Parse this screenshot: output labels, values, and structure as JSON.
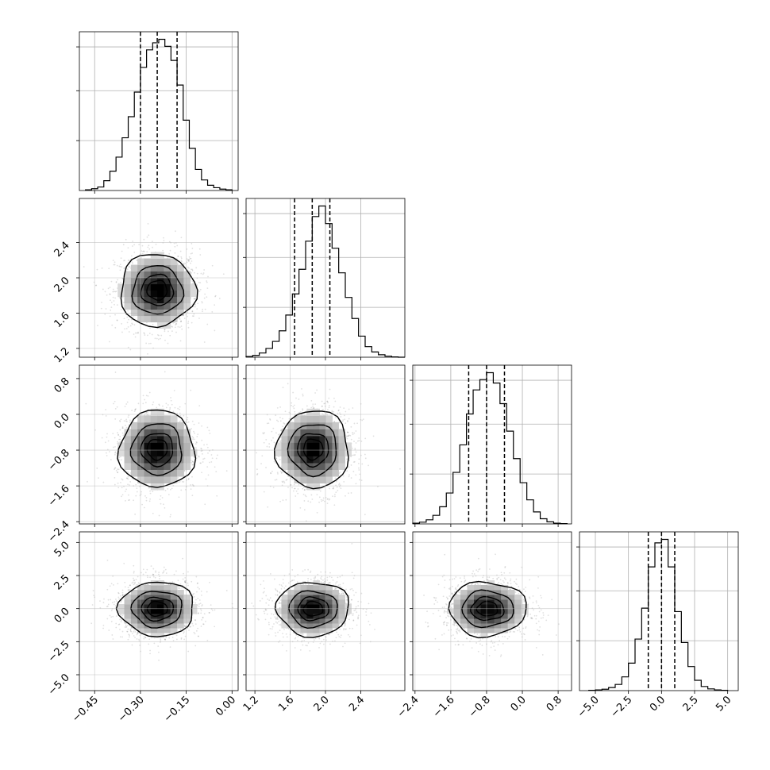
{
  "chart_data": {
    "type": "corner",
    "parameters": [
      {
        "id": "p0",
        "range": [
          -0.5,
          0.02
        ],
        "ticks": [
          "-0.45",
          "-0.30",
          "-0.15",
          "0.00"
        ],
        "tick_values": [
          -0.45,
          -0.3,
          -0.15,
          0.0
        ],
        "quantiles": [
          -0.3,
          -0.245,
          -0.18
        ],
        "center": -0.245,
        "sigma": 0.06,
        "hist_edges": [
          -0.48,
          -0.46,
          -0.44,
          -0.42,
          -0.4,
          -0.38,
          -0.36,
          -0.34,
          -0.32,
          -0.3,
          -0.28,
          -0.26,
          -0.24,
          -0.22,
          -0.2,
          -0.18,
          -0.16,
          -0.14,
          -0.12,
          -0.1,
          -0.08,
          -0.06,
          -0.04,
          -0.02,
          0.0
        ],
        "hist_counts": [
          2,
          5,
          10,
          28,
          55,
          95,
          150,
          210,
          280,
          350,
          400,
          420,
          430,
          410,
          370,
          300,
          200,
          120,
          60,
          30,
          15,
          8,
          4,
          2
        ]
      },
      {
        "id": "p1",
        "range": [
          1.1,
          2.9
        ],
        "ticks": [
          "1.2",
          "1.6",
          "2.0",
          "2.4"
        ],
        "tick_values": [
          1.2,
          1.6,
          2.0,
          2.4
        ],
        "quantiles": [
          1.65,
          1.85,
          2.05
        ],
        "center": 1.86,
        "sigma": 0.2,
        "hist_edges": [
          1.1,
          1.175,
          1.25,
          1.325,
          1.4,
          1.475,
          1.55,
          1.625,
          1.7,
          1.775,
          1.85,
          1.925,
          2.0,
          2.075,
          2.15,
          2.225,
          2.3,
          2.375,
          2.45,
          2.525,
          2.6,
          2.675,
          2.75,
          2.825,
          2.9
        ],
        "hist_counts": [
          2,
          5,
          12,
          25,
          45,
          75,
          120,
          180,
          250,
          330,
          400,
          430,
          380,
          310,
          240,
          170,
          110,
          60,
          30,
          15,
          7,
          3,
          1,
          0
        ]
      },
      {
        "id": "p2",
        "range": [
          -2.45,
          1.1
        ],
        "ticks": [
          "-2.4",
          "-1.6",
          "-0.8",
          "0.0",
          "0.8"
        ],
        "tick_values": [
          -2.4,
          -1.6,
          -0.8,
          0.0,
          0.8
        ],
        "quantiles": [
          -1.2,
          -0.8,
          -0.4
        ],
        "center": -0.78,
        "sigma": 0.42,
        "hist_edges": [
          -2.45,
          -2.3,
          -2.15,
          -2.0,
          -1.85,
          -1.7,
          -1.55,
          -1.4,
          -1.25,
          -1.1,
          -0.95,
          -0.8,
          -0.65,
          -0.5,
          -0.35,
          -0.2,
          -0.05,
          0.1,
          0.25,
          0.4,
          0.55,
          0.7,
          0.85,
          1.0
        ],
        "hist_counts": [
          2,
          5,
          12,
          25,
          50,
          90,
          150,
          230,
          320,
          390,
          420,
          440,
          410,
          350,
          270,
          190,
          120,
          70,
          35,
          15,
          6,
          2,
          1
        ]
      },
      {
        "id": "p3",
        "range": [
          -6.2,
          5.8
        ],
        "ticks": [
          "-5.0",
          "-2.5",
          "0.0",
          "2.5",
          "5.0"
        ],
        "tick_values": [
          -5.0,
          -2.5,
          0.0,
          2.5,
          5.0
        ],
        "quantiles": [
          -1.0,
          0.0,
          1.0
        ],
        "center": -0.02,
        "sigma": 1.0,
        "hist_edges": [
          -5.5,
          -5.0,
          -4.5,
          -4.0,
          -3.5,
          -3.0,
          -2.5,
          -2.0,
          -1.5,
          -1.0,
          -0.5,
          0.0,
          0.5,
          1.0,
          1.5,
          2.0,
          2.5,
          3.0,
          3.5,
          4.0,
          4.5,
          5.0
        ],
        "hist_counts": [
          1,
          2,
          4,
          9,
          18,
          40,
          80,
          150,
          240,
          360,
          430,
          440,
          360,
          230,
          140,
          70,
          30,
          12,
          5,
          2,
          1
        ]
      }
    ],
    "grid": true,
    "quantile_lines": "dashed"
  }
}
